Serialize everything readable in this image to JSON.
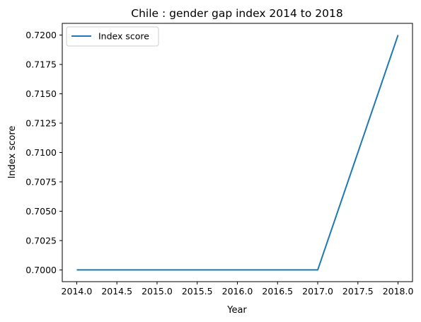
{
  "chart_data": {
    "type": "line",
    "title": "Chile : gender gap index 2014 to 2018",
    "xlabel": "Year",
    "ylabel": "Index score",
    "x": [
      2014,
      2015,
      2016,
      2017,
      2018
    ],
    "series": [
      {
        "name": "Index score",
        "values": [
          0.7,
          0.7,
          0.7,
          0.7,
          0.72
        ],
        "color": "#1f77b4"
      }
    ],
    "xlim": [
      2013.82,
      2018.18
    ],
    "ylim": [
      0.699,
      0.721
    ],
    "x_ticks": [
      "2014.0",
      "2014.5",
      "2015.0",
      "2015.5",
      "2016.0",
      "2016.5",
      "2017.0",
      "2017.5",
      "2018.0"
    ],
    "y_ticks": [
      "0.7000",
      "0.7025",
      "0.7050",
      "0.7075",
      "0.7100",
      "0.7125",
      "0.7150",
      "0.7175",
      "0.7200"
    ],
    "grid": false,
    "legend_position": "upper-left"
  }
}
